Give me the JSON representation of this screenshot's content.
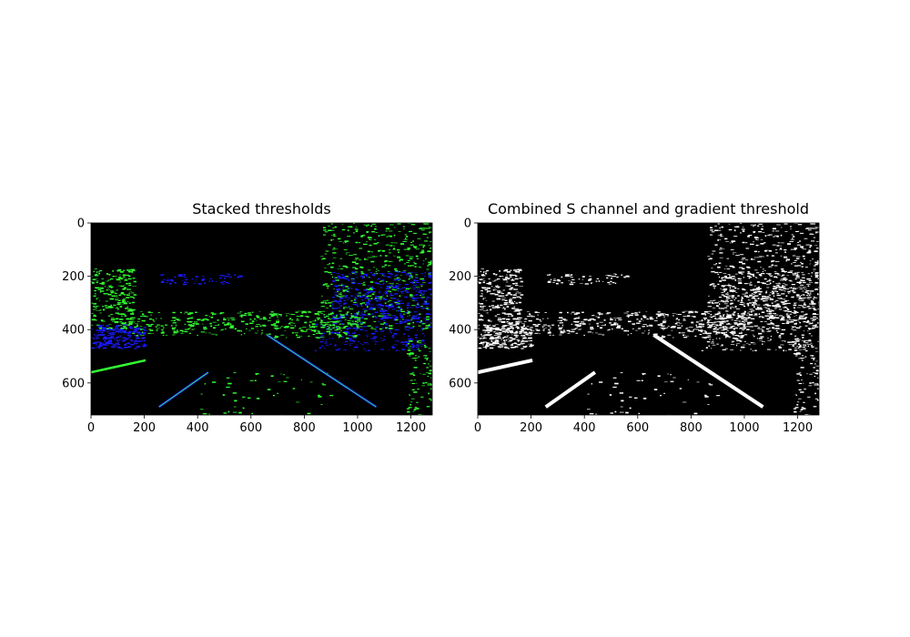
{
  "chart_data": [
    {
      "type": "image",
      "title": "Stacked thresholds",
      "mode": "stacked",
      "colors": {
        "gradient": "#33ff33",
        "s_channel": "#1a1aff",
        "background": "#000000"
      },
      "xlim": [
        0,
        1280
      ],
      "ylim": [
        720,
        0
      ],
      "xticks": [
        0,
        200,
        400,
        600,
        800,
        1000,
        1200
      ],
      "yticks": [
        0,
        200,
        400,
        600
      ],
      "lane_lines": [
        {
          "x1": 255,
          "y1": 690,
          "x2": 440,
          "y2": 560
        },
        {
          "x1": 660,
          "y1": 420,
          "x2": 1070,
          "y2": 690
        },
        {
          "x1": 0,
          "y1": 560,
          "x2": 205,
          "y2": 515
        }
      ]
    },
    {
      "type": "image",
      "title": "Combined S channel and gradient threshold",
      "mode": "binary",
      "colors": {
        "foreground": "#ffffff",
        "background": "#000000"
      },
      "xlim": [
        0,
        1280
      ],
      "ylim": [
        720,
        0
      ],
      "xticks": [
        0,
        200,
        400,
        600,
        800,
        1000,
        1200
      ],
      "yticks": [
        0,
        200,
        400,
        600
      ],
      "lane_lines": [
        {
          "x1": 255,
          "y1": 690,
          "x2": 440,
          "y2": 560
        },
        {
          "x1": 660,
          "y1": 420,
          "x2": 1070,
          "y2": 690
        },
        {
          "x1": 0,
          "y1": 560,
          "x2": 205,
          "y2": 515
        }
      ]
    }
  ]
}
